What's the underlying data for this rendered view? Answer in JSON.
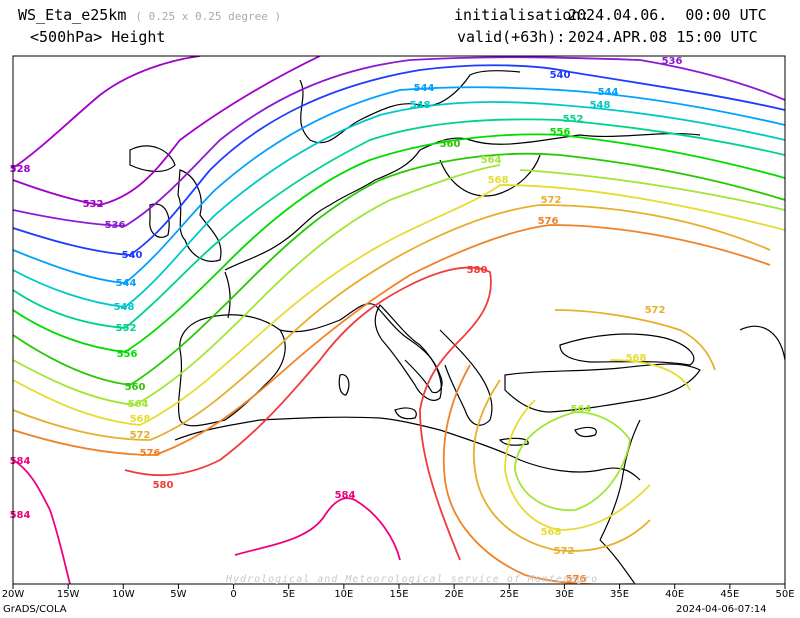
{
  "header": {
    "model": "WS_Eta_e25km",
    "resolution": "( 0.25 x 0.25 degree )",
    "field": "<500hPa> Height",
    "init_label": "initialisation:",
    "init_value": "2024.04.06.  00:00 UTC",
    "valid_label": "valid(+63h):",
    "valid_value": "2024.APR.08 15:00 UTC"
  },
  "axes": {
    "x_ticks": [
      "20W",
      "15W",
      "10W",
      "5W",
      "0",
      "5E",
      "10E",
      "15E",
      "20E",
      "25E",
      "30E",
      "35E",
      "40E",
      "45E",
      "50E"
    ]
  },
  "footer": {
    "left": "GrADS/COLA",
    "right": "2024-04-06-07:14",
    "watermark": "Hydrological and Meteorological service of Montenegro"
  },
  "chart_data": {
    "type": "contour",
    "variable": "500hPa geopotential height (dam)",
    "xlim": [
      -20,
      50
    ],
    "contour_levels": [
      528,
      532,
      536,
      540,
      544,
      548,
      552,
      556,
      560,
      564,
      568,
      572,
      576,
      580,
      584
    ],
    "level_colors": {
      "528": "#a000c8",
      "532": "#a000c8",
      "536": "#8c1ad2",
      "540": "#1e3cff",
      "544": "#00a0ff",
      "548": "#00c8c8",
      "552": "#00d28c",
      "556": "#00dc00",
      "560": "#28c800",
      "564": "#a0e632",
      "568": "#e6dc32",
      "572": "#e6af2d",
      "576": "#f08228",
      "580": "#f03c3c",
      "584": "#f0007f"
    }
  }
}
